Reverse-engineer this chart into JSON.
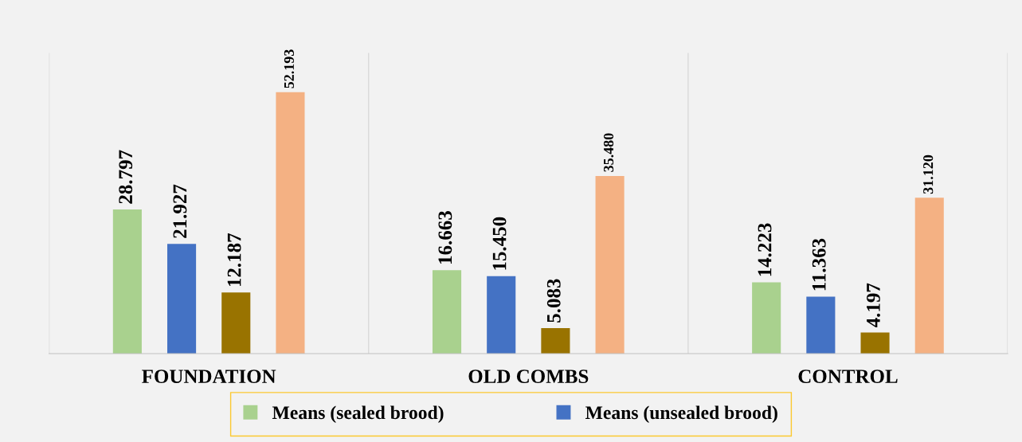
{
  "chart_data": {
    "type": "bar",
    "categories": [
      "FOUNDATION",
      "OLD COMBS",
      "CONTROL"
    ],
    "series": [
      {
        "name": "Means (sealed brood)",
        "color": "#a9d18e",
        "values": [
          28.797,
          16.663,
          14.223
        ],
        "value_labels": [
          "28.797",
          "16.663",
          "14.223"
        ]
      },
      {
        "name": "Means (unsealed brood)",
        "color": "#4472c4",
        "values": [
          21.927,
          15.45,
          11.363
        ],
        "value_labels": [
          "21.927",
          "15.450",
          "11.363"
        ]
      },
      {
        "color": "#997300",
        "values": [
          12.187,
          5.083,
          4.197
        ],
        "value_labels": [
          "12.187",
          "5.083",
          "4.197"
        ]
      },
      {
        "color": "#f4b183",
        "values": [
          52.193,
          35.48,
          31.12
        ],
        "value_labels": [
          "52.193",
          "35.480",
          "31.120"
        ]
      }
    ],
    "grid": "x",
    "legend": "bottom",
    "tick_labels": "x"
  }
}
